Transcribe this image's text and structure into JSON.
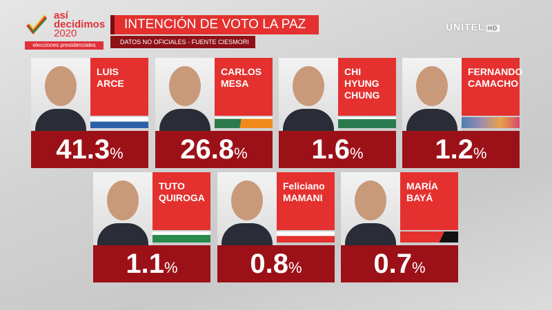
{
  "logo": {
    "line1": "así",
    "line2": "decidimos",
    "line3": "2020",
    "sub": "elecciones presidenciales"
  },
  "header": {
    "title": "INTENCIÓN DE VOTO LA PAZ",
    "subtitle": "DATOS NO OFICIALES - FUENTE CIESMORI"
  },
  "channel": {
    "name": "UNITEL",
    "badge": "HD"
  },
  "candidates": [
    {
      "name1": "LUIS",
      "name2": "ARCE",
      "value": "41.3",
      "unit": "%",
      "stripe": "linear-gradient(#fff 0 40%,#2b5fa8 40%)"
    },
    {
      "name1": "CARLOS",
      "name2": "MESA",
      "value": "26.8",
      "unit": "%",
      "stripe": "linear-gradient(#fff 0 15%,transparent 15%),linear-gradient(100deg,#2c7a4b 0 45%,#f08a1c 45%)"
    },
    {
      "name1": "CHI HYUNG",
      "name2": "CHUNG",
      "value": "1.6",
      "unit": "%",
      "stripe": "linear-gradient(#fff 0 20%,#2a7a50 20%)"
    },
    {
      "name1": "FERNANDO",
      "name2": "CAMACHO",
      "value": "1.2",
      "unit": "%",
      "stripe": "linear-gradient(90deg,#4a7fb0,#9c8bb0,#e6a34a,#d94a6a)"
    },
    {
      "name1": "TUTO",
      "name2": "QUIROGA",
      "value": "1.1",
      "unit": "%",
      "stripe": "linear-gradient(#fff 0 30%,#2a8a4a 30%)"
    },
    {
      "name1": "Feliciano",
      "name2": "MAMANI",
      "value": "0.8",
      "unit": "%",
      "stripe": "linear-gradient(#fff 0 40%,#e4312f 40%)"
    },
    {
      "name1": "MARÍA",
      "name2": "BAYÁ",
      "value": "0.7",
      "unit": "%",
      "stripe": "linear-gradient(115deg,#e4312f 0 70%,#111 70%)"
    }
  ]
}
